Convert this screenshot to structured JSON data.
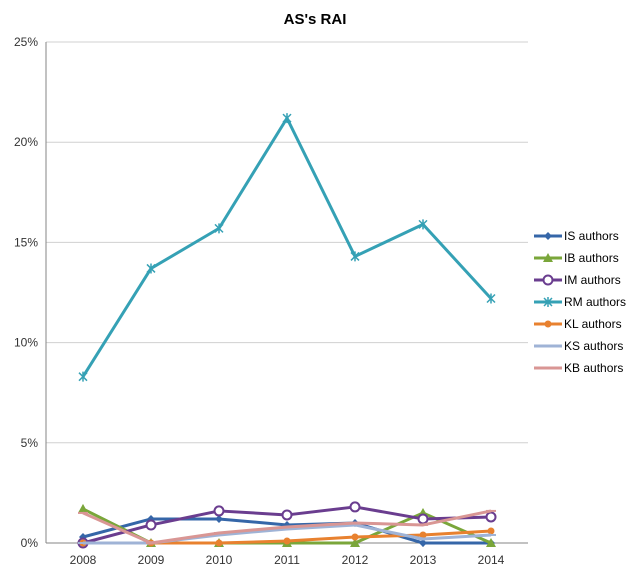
{
  "chart_data": {
    "type": "line",
    "title": "AS's RAI",
    "xlabel": "",
    "ylabel": "",
    "x": [
      "2008",
      "2009",
      "2010",
      "2011",
      "2012",
      "2013",
      "2014"
    ],
    "ylim": [
      0,
      25
    ],
    "yticks": [
      0,
      5,
      10,
      15,
      20,
      25
    ],
    "ytick_labels": [
      "0%",
      "5%",
      "10%",
      "15%",
      "20%",
      "25%"
    ],
    "grid": true,
    "legend_position": "right",
    "series": [
      {
        "name": "IS authors",
        "color": "#3566a8",
        "marker": "diamond",
        "values": [
          0.3,
          1.2,
          1.2,
          0.9,
          1.0,
          0.0,
          0.0
        ]
      },
      {
        "name": "IB authors",
        "color": "#7aa63a",
        "marker": "triangle",
        "values": [
          1.7,
          0.0,
          0.0,
          0.0,
          0.0,
          1.5,
          0.0
        ]
      },
      {
        "name": "IM authors",
        "color": "#6a3d8f",
        "marker": "circle",
        "values": [
          0.0,
          0.9,
          1.6,
          1.4,
          1.8,
          1.2,
          1.3
        ]
      },
      {
        "name": "RM authors",
        "color": "#35a1b5",
        "marker": "star",
        "values": [
          8.3,
          13.7,
          15.7,
          21.2,
          14.3,
          15.9,
          12.2
        ]
      },
      {
        "name": "KL authors",
        "color": "#e8812f",
        "marker": "dot",
        "values": [
          0.0,
          0.0,
          0.0,
          0.1,
          0.3,
          0.4,
          0.6
        ]
      },
      {
        "name": "KS authors",
        "color": "#9fb3d6",
        "marker": "dash",
        "values": [
          0.0,
          0.0,
          0.4,
          0.7,
          0.9,
          0.2,
          0.4
        ]
      },
      {
        "name": "KB authors",
        "color": "#d99694",
        "marker": "dash",
        "values": [
          1.5,
          0.0,
          0.5,
          0.8,
          1.0,
          0.9,
          1.6
        ]
      }
    ]
  }
}
